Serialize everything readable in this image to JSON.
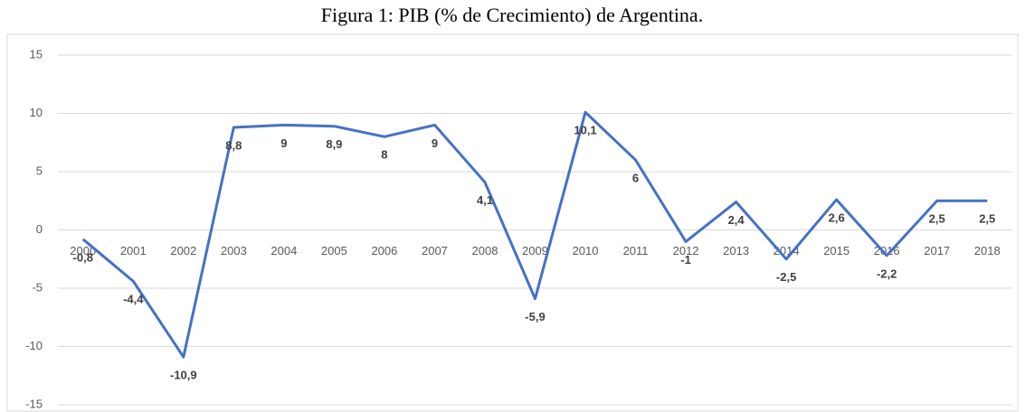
{
  "chart_data": {
    "type": "line",
    "title": "Figura 1: PIB (% de Crecimiento) de Argentina.",
    "categories": [
      "2000",
      "2001",
      "2002",
      "2003",
      "2004",
      "2005",
      "2006",
      "2007",
      "2008",
      "2009",
      "2010",
      "2011",
      "2012",
      "2013",
      "2014",
      "2015",
      "2016",
      "2017",
      "2018"
    ],
    "values": [
      -0.8,
      -4.4,
      -10.9,
      8.8,
      9,
      8.9,
      8,
      9,
      4.1,
      -5.9,
      10.1,
      6,
      -1,
      2.4,
      -2.5,
      2.6,
      -2.2,
      2.5,
      2.5
    ],
    "value_labels": [
      "-0,8",
      "-4,4",
      "-10,9",
      "8,8",
      "9",
      "8,9",
      "8",
      "9",
      "4,1",
      "-5,9",
      "10,1",
      "6",
      "-1",
      "2,4",
      "-2,5",
      "2,6",
      "-2,2",
      "2,5",
      "2,5"
    ],
    "color": "#4472c4",
    "ylim": [
      -15,
      15
    ],
    "yticks": [
      15,
      10,
      5,
      0,
      -5,
      -10,
      -15
    ],
    "grid": true
  }
}
